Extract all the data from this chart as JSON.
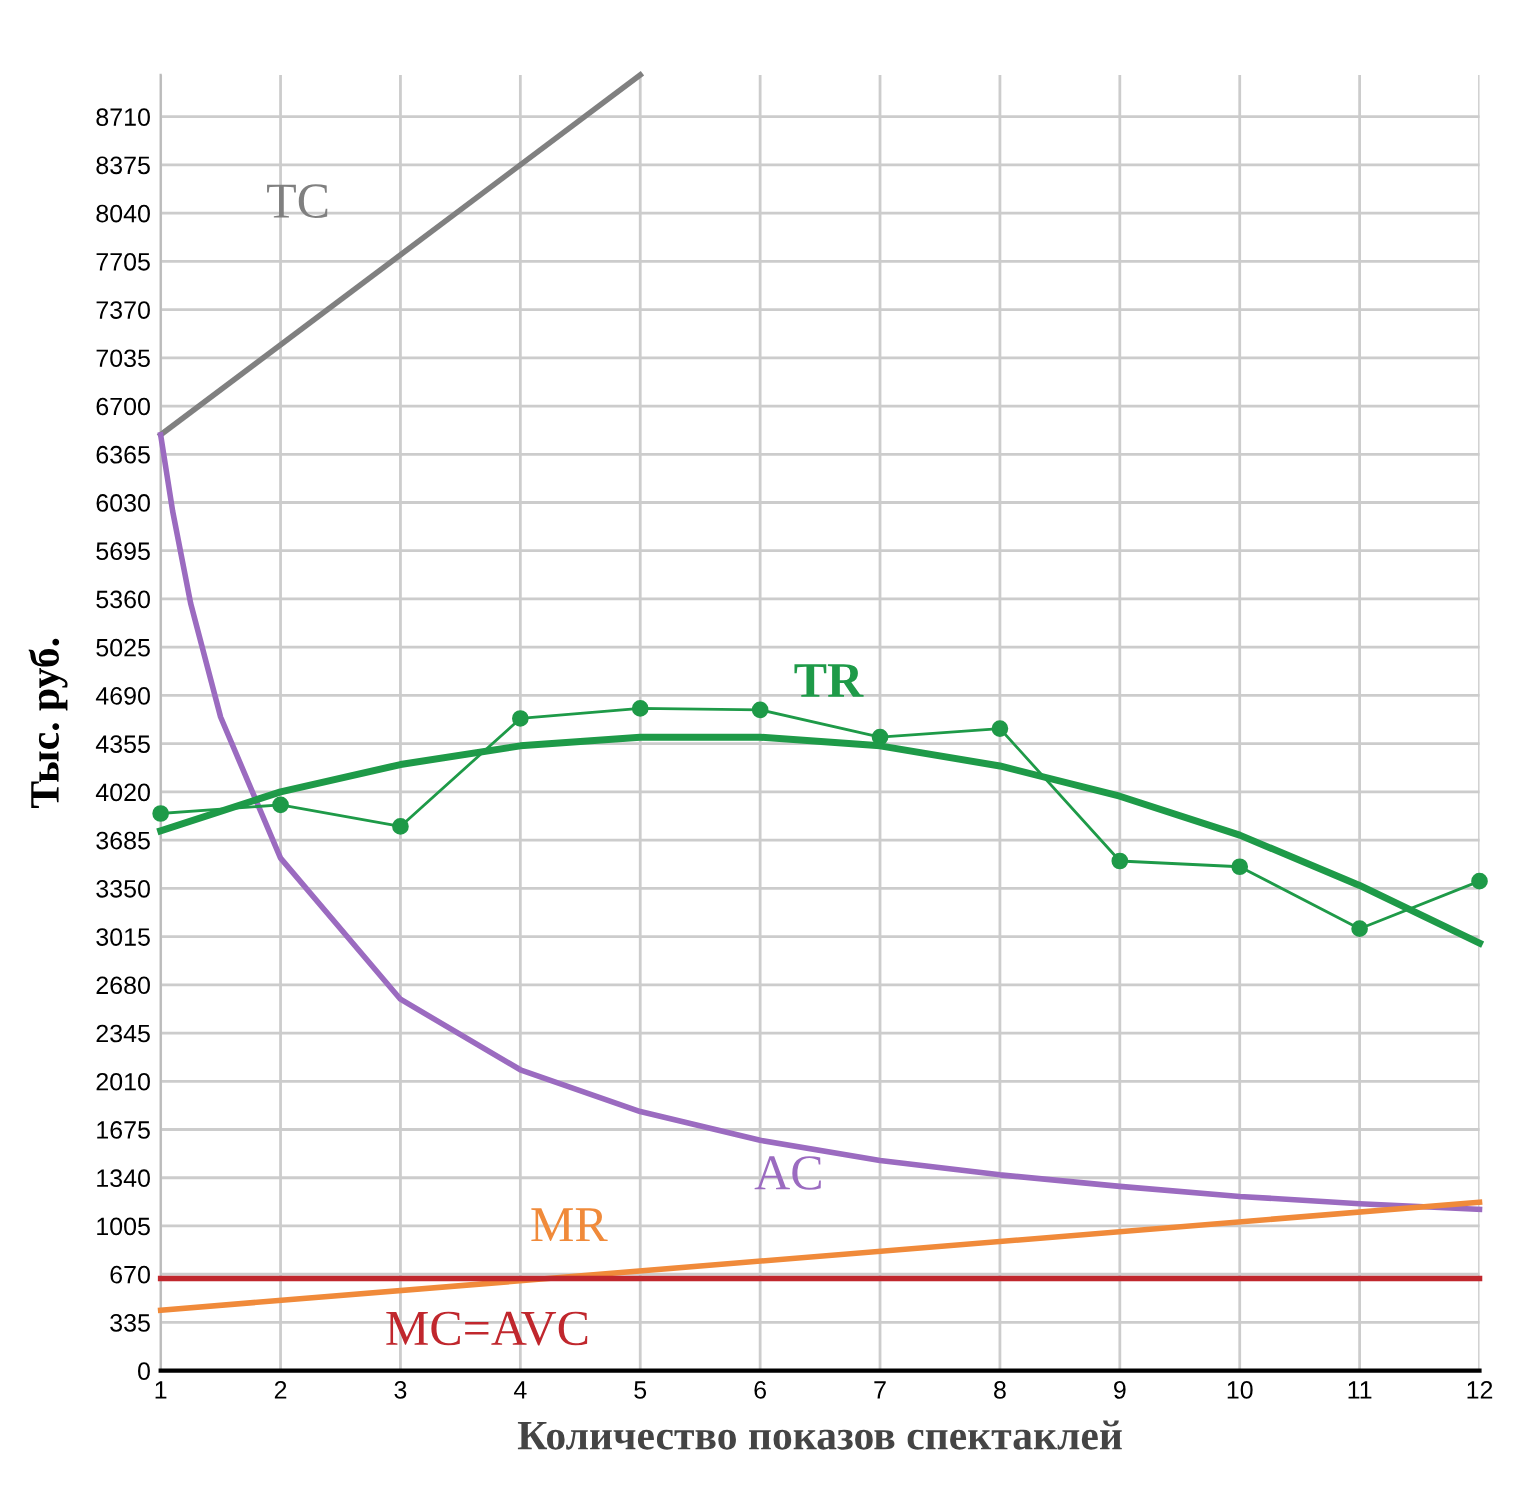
{
  "chart_data": {
    "type": "line",
    "xlabel": "Количество показов спектаклей",
    "ylabel": "Тыс. руб.",
    "xlim": [
      1,
      12
    ],
    "xticks": [
      1,
      2,
      3,
      4,
      5,
      6,
      7,
      8,
      9,
      10,
      11,
      12
    ],
    "ylim": [
      0,
      9000
    ],
    "yticks": [
      0,
      335,
      670,
      1005,
      1340,
      1675,
      2010,
      2345,
      2680,
      3015,
      3350,
      3685,
      4020,
      4355,
      4690,
      5025,
      5360,
      5695,
      6030,
      6365,
      6700,
      7035,
      7370,
      7705,
      8040,
      8375,
      8710
    ],
    "grid": true,
    "legend": false,
    "series": [
      {
        "name": "TC",
        "color": "#808080",
        "x": [
          1,
          5
        ],
        "values": [
          6500,
          9000
        ]
      },
      {
        "name": "AC",
        "color": "#9b6bc0",
        "x": [
          1,
          1.1,
          1.25,
          1.5,
          2,
          3,
          4,
          5,
          6,
          7,
          8,
          9,
          10,
          11,
          12
        ],
        "values": [
          6500,
          5970,
          5330,
          4540,
          3560,
          2580,
          2090,
          1800,
          1600,
          1460,
          1360,
          1280,
          1210,
          1160,
          1120
        ]
      },
      {
        "color": "#1e9a48",
        "marker": "circle",
        "x": [
          1,
          2,
          3,
          4,
          5,
          6,
          7,
          8,
          9,
          10,
          11,
          12
        ],
        "values": [
          3870,
          3930,
          3780,
          4530,
          4600,
          4590,
          4400,
          4460,
          3540,
          3500,
          3070,
          3400
        ]
      },
      {
        "name": "TR",
        "color": "#1e9a48",
        "x": [
          1,
          2,
          3,
          4,
          5,
          6,
          7,
          8,
          9,
          10,
          11,
          12
        ],
        "values": [
          3750,
          4020,
          4210,
          4340,
          4400,
          4400,
          4340,
          4200,
          3990,
          3720,
          3370,
          2970
        ]
      },
      {
        "name": "MR",
        "color": "#f08a3a",
        "x": [
          1,
          12
        ],
        "values": [
          420,
          1170
        ]
      },
      {
        "name": "MC=AVC",
        "color": "#c0272d",
        "x": [
          1,
          12
        ],
        "values": [
          640,
          640
        ]
      }
    ]
  }
}
